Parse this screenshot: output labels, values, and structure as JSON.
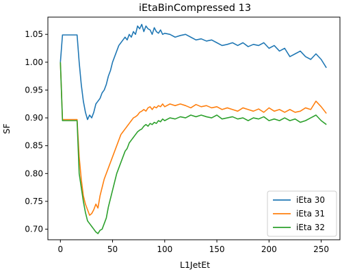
{
  "chart_data": {
    "type": "line",
    "title": "iEtaBinCompressed 13",
    "xlabel": "L1JetEt",
    "ylabel": "SF",
    "xlim": [
      -12,
      268
    ],
    "ylim": [
      0.681,
      1.081
    ],
    "xticks": [
      0,
      50,
      100,
      150,
      200,
      250
    ],
    "yticks": [
      0.7,
      0.75,
      0.8,
      0.85,
      0.9,
      0.95,
      1.0,
      1.05
    ],
    "grid": false,
    "legend_position": "lower-right",
    "x": [
      0,
      2,
      4,
      6,
      8,
      10,
      12,
      14,
      16,
      18,
      20,
      22,
      24,
      26,
      28,
      30,
      32,
      34,
      36,
      38,
      40,
      42,
      44,
      46,
      48,
      50,
      52,
      54,
      56,
      58,
      60,
      62,
      64,
      66,
      68,
      70,
      72,
      74,
      76,
      78,
      80,
      82,
      84,
      86,
      88,
      90,
      92,
      94,
      96,
      98,
      100,
      105,
      110,
      115,
      120,
      125,
      130,
      135,
      140,
      145,
      150,
      155,
      160,
      165,
      170,
      175,
      180,
      185,
      190,
      195,
      200,
      205,
      210,
      215,
      220,
      225,
      230,
      235,
      240,
      245,
      250,
      255
    ],
    "series": [
      {
        "name": "iEta 30",
        "color": "#1f77b4",
        "values": [
          1.0,
          1.049,
          1.049,
          1.049,
          1.049,
          1.049,
          1.049,
          1.049,
          1.049,
          1.0,
          0.96,
          0.93,
          0.91,
          0.897,
          0.905,
          0.9,
          0.91,
          0.925,
          0.93,
          0.935,
          0.945,
          0.95,
          0.96,
          0.975,
          0.985,
          1.0,
          1.01,
          1.02,
          1.03,
          1.035,
          1.04,
          1.045,
          1.04,
          1.05,
          1.045,
          1.055,
          1.05,
          1.065,
          1.06,
          1.068,
          1.055,
          1.065,
          1.06,
          1.058,
          1.05,
          1.062,
          1.055,
          1.052,
          1.058,
          1.05,
          1.052,
          1.05,
          1.045,
          1.048,
          1.05,
          1.045,
          1.04,
          1.042,
          1.038,
          1.04,
          1.035,
          1.03,
          1.032,
          1.035,
          1.03,
          1.035,
          1.028,
          1.032,
          1.03,
          1.035,
          1.025,
          1.03,
          1.02,
          1.025,
          1.01,
          1.015,
          1.02,
          1.01,
          1.005,
          1.015,
          1.005,
          0.99
        ]
      },
      {
        "name": "iEta 31",
        "color": "#ff7f0e",
        "values": [
          1.0,
          0.897,
          0.897,
          0.897,
          0.897,
          0.897,
          0.897,
          0.897,
          0.897,
          0.83,
          0.79,
          0.76,
          0.745,
          0.735,
          0.725,
          0.728,
          0.735,
          0.745,
          0.738,
          0.76,
          0.775,
          0.79,
          0.8,
          0.81,
          0.82,
          0.83,
          0.84,
          0.85,
          0.86,
          0.87,
          0.875,
          0.88,
          0.885,
          0.89,
          0.895,
          0.9,
          0.902,
          0.905,
          0.91,
          0.912,
          0.915,
          0.912,
          0.918,
          0.92,
          0.915,
          0.92,
          0.918,
          0.922,
          0.92,
          0.925,
          0.92,
          0.925,
          0.922,
          0.925,
          0.922,
          0.918,
          0.924,
          0.92,
          0.922,
          0.918,
          0.92,
          0.915,
          0.918,
          0.915,
          0.912,
          0.918,
          0.915,
          0.912,
          0.916,
          0.91,
          0.918,
          0.912,
          0.915,
          0.91,
          0.915,
          0.91,
          0.912,
          0.918,
          0.915,
          0.93,
          0.92,
          0.908
        ]
      },
      {
        "name": "iEta 32",
        "color": "#2ca02c",
        "values": [
          1.0,
          0.895,
          0.895,
          0.895,
          0.895,
          0.895,
          0.895,
          0.895,
          0.895,
          0.8,
          0.775,
          0.75,
          0.73,
          0.715,
          0.71,
          0.705,
          0.7,
          0.695,
          0.692,
          0.698,
          0.7,
          0.71,
          0.72,
          0.74,
          0.755,
          0.77,
          0.785,
          0.8,
          0.81,
          0.82,
          0.83,
          0.84,
          0.845,
          0.855,
          0.86,
          0.865,
          0.87,
          0.875,
          0.878,
          0.88,
          0.885,
          0.888,
          0.885,
          0.89,
          0.888,
          0.892,
          0.89,
          0.895,
          0.893,
          0.898,
          0.895,
          0.9,
          0.898,
          0.902,
          0.9,
          0.905,
          0.902,
          0.905,
          0.902,
          0.9,
          0.905,
          0.898,
          0.9,
          0.902,
          0.898,
          0.9,
          0.895,
          0.9,
          0.898,
          0.902,
          0.895,
          0.898,
          0.895,
          0.9,
          0.895,
          0.898,
          0.892,
          0.895,
          0.9,
          0.905,
          0.895,
          0.888
        ]
      }
    ]
  }
}
